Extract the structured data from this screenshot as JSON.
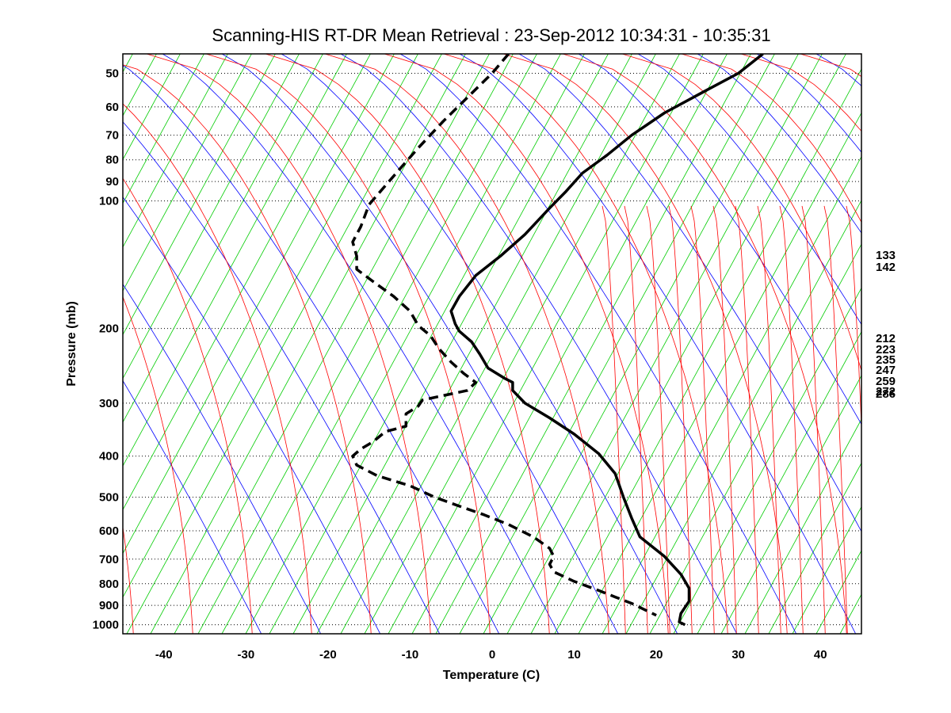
{
  "chart_data": {
    "type": "line",
    "title": "Scanning-HIS RT-DR Mean Retrieval : 23-Sep-2012 10:34:31 - 10:35:31",
    "xlabel": "Temperature (C)",
    "ylabel": "Pressure (mb)",
    "xlim": [
      -45,
      45
    ],
    "ylim": [
      1050,
      45
    ],
    "y_scale": "log",
    "x_ticks": [
      "-40",
      "-30",
      "-20",
      "-10",
      "0",
      "10",
      "20",
      "30",
      "40"
    ],
    "y_ticks": [
      "50",
      "60",
      "70",
      "80",
      "90",
      "100",
      "200",
      "300",
      "400",
      "500",
      "600",
      "700",
      "800",
      "900",
      "1000"
    ],
    "grid": "horizontal dotted at pressure ticks",
    "background_lines": {
      "dry_adiabats_color": "#0000ff",
      "moist_adiabats_color": "#ff0000",
      "mixing_ratio_color": "#00cc00",
      "isotherms_color": "#00cc00"
    },
    "right_labels": [
      "133",
      "142",
      "212",
      "223",
      "235",
      "247",
      "259",
      "272",
      "286"
    ],
    "series": [
      {
        "style": "solid",
        "color": "#000000",
        "points": [
          [
            33,
            45
          ],
          [
            30,
            50
          ],
          [
            26,
            55
          ],
          [
            21,
            62
          ],
          [
            17,
            70
          ],
          [
            14,
            78
          ],
          [
            11,
            86
          ],
          [
            9,
            95
          ],
          [
            7,
            104
          ],
          [
            4,
            120
          ],
          [
            1,
            135
          ],
          [
            -2,
            150
          ],
          [
            -4,
            168
          ],
          [
            -5,
            182
          ],
          [
            -4.5,
            195
          ],
          [
            -4,
            203
          ],
          [
            -2.5,
            215
          ],
          [
            -1.5,
            230
          ],
          [
            -0.5,
            248
          ],
          [
            1.5,
            262
          ],
          [
            2.5,
            268
          ],
          [
            2.5,
            280
          ],
          [
            4,
            300
          ],
          [
            7,
            325
          ],
          [
            10,
            355
          ],
          [
            13,
            395
          ],
          [
            15,
            440
          ],
          [
            16,
            500
          ],
          [
            17,
            560
          ],
          [
            18,
            620
          ],
          [
            21,
            690
          ],
          [
            23,
            760
          ],
          [
            24,
            820
          ],
          [
            24,
            880
          ],
          [
            23,
            940
          ],
          [
            22.8,
            985
          ],
          [
            23.5,
            1000
          ]
        ]
      },
      {
        "style": "dashed",
        "color": "#000000",
        "points": [
          [
            2,
            45
          ],
          [
            0,
            50
          ],
          [
            -3,
            57
          ],
          [
            -6,
            65
          ],
          [
            -9,
            75
          ],
          [
            -11,
            83
          ],
          [
            -13,
            92
          ],
          [
            -15,
            102
          ],
          [
            -16,
            115
          ],
          [
            -17,
            125
          ],
          [
            -16.5,
            135
          ],
          [
            -16.5,
            145
          ],
          [
            -14.5,
            155
          ],
          [
            -12,
            168
          ],
          [
            -10,
            182
          ],
          [
            -9,
            197
          ],
          [
            -7.5,
            208
          ],
          [
            -6.5,
            223
          ],
          [
            -5,
            240
          ],
          [
            -3.5,
            255
          ],
          [
            -2,
            268
          ],
          [
            -3,
            280
          ],
          [
            -6,
            288
          ],
          [
            -8.5,
            295
          ],
          [
            -9,
            305
          ],
          [
            -10.5,
            318
          ],
          [
            -10.5,
            340
          ],
          [
            -13,
            350
          ],
          [
            -14.5,
            370
          ],
          [
            -16,
            385
          ],
          [
            -17,
            400
          ],
          [
            -16.5,
            420
          ],
          [
            -14,
            445
          ],
          [
            -10,
            470
          ],
          [
            -7,
            500
          ],
          [
            -4,
            525
          ],
          [
            -1,
            550
          ],
          [
            2,
            580
          ],
          [
            5,
            620
          ],
          [
            7,
            660
          ],
          [
            7.5,
            690
          ],
          [
            7,
            720
          ],
          [
            7.5,
            750
          ],
          [
            10,
            790
          ],
          [
            13,
            830
          ],
          [
            15,
            860
          ],
          [
            17,
            890
          ],
          [
            18,
            910
          ],
          [
            20,
            950
          ]
        ]
      }
    ]
  }
}
